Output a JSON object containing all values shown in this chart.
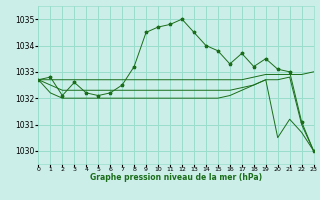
{
  "title": "Graphe pression niveau de la mer (hPa)",
  "bg_color": "#cceee8",
  "grid_color": "#99ddcc",
  "line_color": "#1a6e1a",
  "xlim": [
    0,
    23
  ],
  "ylim": [
    1029.5,
    1035.5
  ],
  "yticks": [
    1030,
    1031,
    1032,
    1033,
    1034,
    1035
  ],
  "xtick_labels": [
    "0",
    "1",
    "2",
    "3",
    "4",
    "5",
    "6",
    "7",
    "8",
    "9",
    "10",
    "11",
    "12",
    "13",
    "14",
    "15",
    "16",
    "17",
    "18",
    "19",
    "20",
    "21",
    "22",
    "23"
  ],
  "series1": [
    1032.7,
    1032.8,
    1032.1,
    1032.6,
    1032.2,
    1032.1,
    1032.2,
    1032.5,
    1033.2,
    1034.5,
    1034.7,
    1034.8,
    1035.0,
    1034.5,
    1034.0,
    1033.8,
    1033.3,
    1033.7,
    1033.2,
    1033.5,
    1033.1,
    1033.0,
    1031.1,
    1030.0
  ],
  "series_high": [
    1032.7,
    1032.7,
    1032.7,
    1032.7,
    1032.7,
    1032.7,
    1032.7,
    1032.7,
    1032.7,
    1032.7,
    1032.7,
    1032.7,
    1032.7,
    1032.7,
    1032.7,
    1032.7,
    1032.7,
    1032.7,
    1032.8,
    1032.9,
    1032.9,
    1032.9,
    1032.9,
    1033.0
  ],
  "series_mid": [
    1032.7,
    1032.5,
    1032.3,
    1032.3,
    1032.3,
    1032.3,
    1032.3,
    1032.3,
    1032.3,
    1032.3,
    1032.3,
    1032.3,
    1032.3,
    1032.3,
    1032.3,
    1032.3,
    1032.3,
    1032.4,
    1032.5,
    1032.7,
    1032.7,
    1032.8,
    1031.0,
    1030.0
  ],
  "series_low": [
    1032.7,
    1032.2,
    1032.0,
    1032.0,
    1032.0,
    1032.0,
    1032.0,
    1032.0,
    1032.0,
    1032.0,
    1032.0,
    1032.0,
    1032.0,
    1032.0,
    1032.0,
    1032.0,
    1032.1,
    1032.3,
    1032.5,
    1032.7,
    1030.5,
    1031.2,
    1030.7,
    1030.0
  ]
}
